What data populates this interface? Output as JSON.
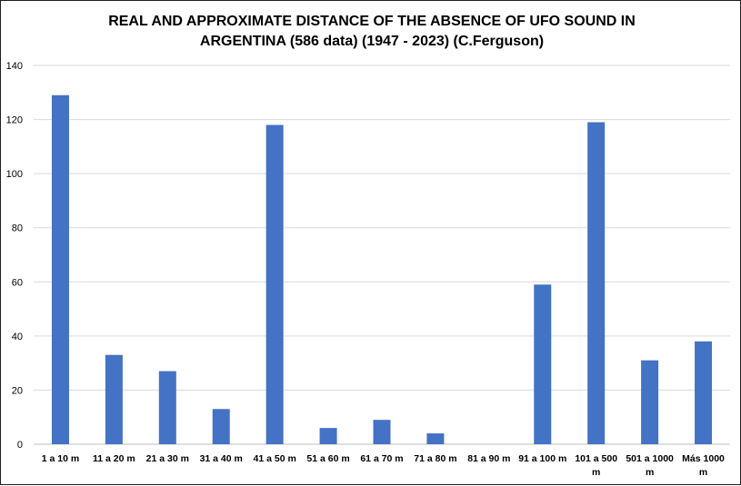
{
  "chart_data": {
    "type": "bar",
    "title_lines": [
      "REAL AND APPROXIMATE DISTANCE OF THE ABSENCE OF UFO SOUND IN",
      "ARGENTINA (586 data) (1947 - 2023) (C.Ferguson)"
    ],
    "categories": [
      [
        "1 a 10 m"
      ],
      [
        "11 a 20 m"
      ],
      [
        "21 a 30 m"
      ],
      [
        "31 a 40 m"
      ],
      [
        "41 a 50 m"
      ],
      [
        "51 a 60 m"
      ],
      [
        "61 a 70 m"
      ],
      [
        "71 a 80 m"
      ],
      [
        "81 a 90 m"
      ],
      [
        "91 a 100 m"
      ],
      [
        "101 a 500",
        "m"
      ],
      [
        "501 a 1000",
        "m"
      ],
      [
        "Más 1000",
        "m"
      ]
    ],
    "values": [
      129,
      33,
      27,
      13,
      118,
      6,
      9,
      4,
      0,
      59,
      119,
      31,
      38
    ],
    "ylim": [
      0,
      140
    ],
    "yticks": [
      0,
      20,
      40,
      60,
      80,
      100,
      120,
      140
    ],
    "grid": true,
    "bar_color": "#4472C4",
    "xlabel": "",
    "ylabel": ""
  }
}
